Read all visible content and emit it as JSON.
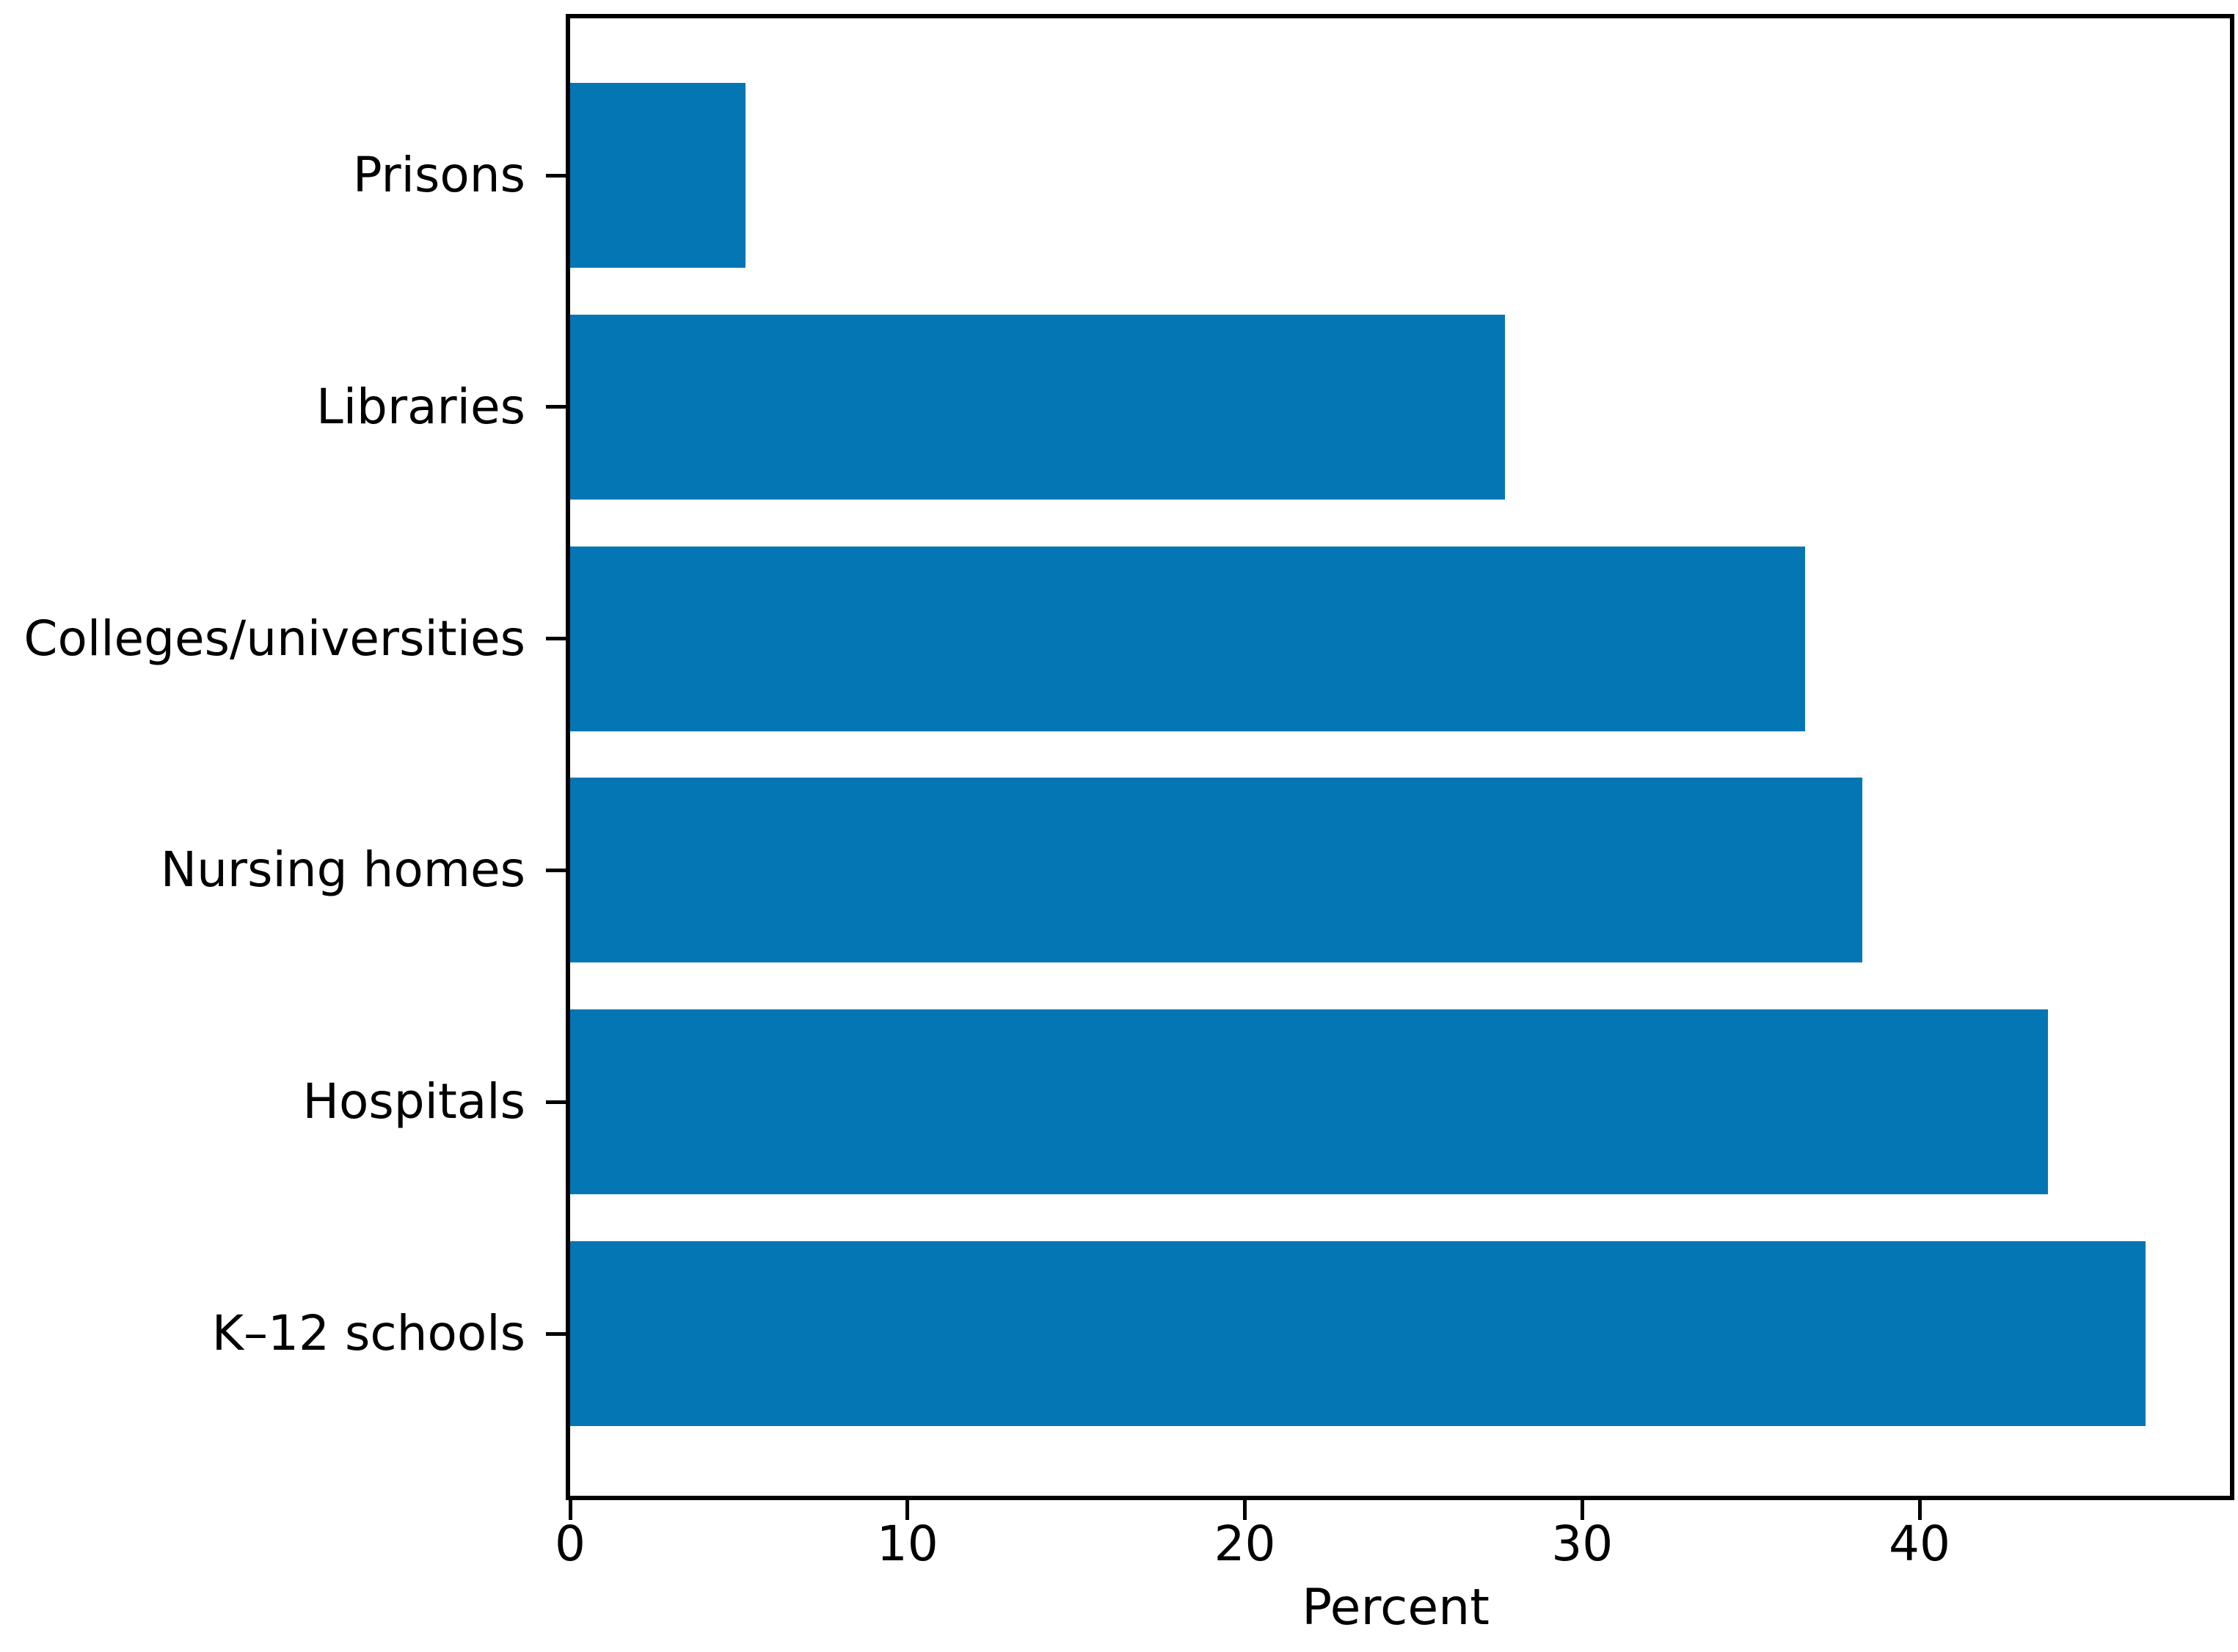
{
  "chart_data": {
    "type": "bar",
    "orientation": "horizontal",
    "title": "",
    "xlabel": "Percent",
    "ylabel": "",
    "categories": [
      "Prisons",
      "Libraries",
      "Colleges/universities",
      "Nursing homes",
      "Hospitals",
      "K–12 schools"
    ],
    "values": [
      5.2,
      27.7,
      36.6,
      38.3,
      43.8,
      46.7
    ],
    "xticks": [
      0,
      10,
      20,
      30,
      40
    ],
    "xlim": [
      0,
      49.2
    ],
    "bar_color": "#0476b4",
    "axis_color": "#000000",
    "grid": false,
    "legend_position": "none"
  }
}
